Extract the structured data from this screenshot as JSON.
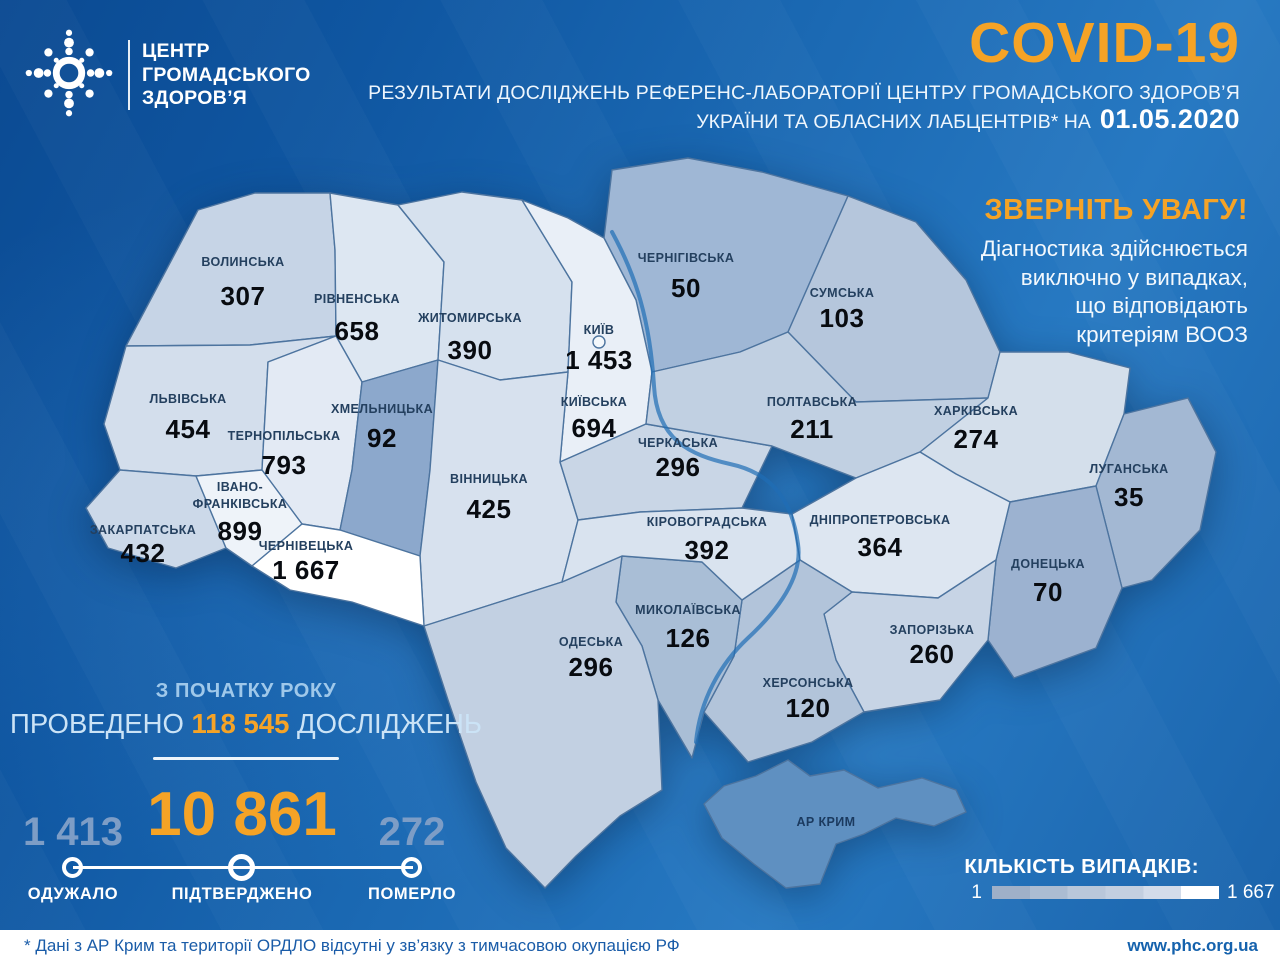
{
  "colors": {
    "accent": "#f5a326",
    "background_top": "#0b4a92",
    "background_light": "#2779c2",
    "region_border": "#4d749f",
    "footer_text": "#1a5ca8",
    "stat_muted": "#7d9dc6",
    "light_text": "#cbe3f6"
  },
  "header": {
    "logo": {
      "lines": [
        "ЦЕНТР",
        "ГРОМАДСЬКОГО",
        "ЗДОРОВ’Я"
      ]
    },
    "title": "COVID-19",
    "subtitle_line1": "РЕЗУЛЬТАТИ ДОСЛІДЖЕНЬ РЕФЕРЕНС-ЛАБОРАТОРІЇ ЦЕНТРУ ГРОМАДСЬКОГО ЗДОРОВ’Я",
    "subtitle_line2_prefix": "УКРАЇНИ ТА ОБЛАСНИХ ЛАБЦЕНТРІВ* НА",
    "date": "01.05.2020"
  },
  "notice": {
    "title": "ЗВЕРНІТЬ УВАГУ!",
    "lines": [
      "Діагностика здійснюється",
      "виключно у випадках,",
      "що відповідають",
      "критеріям ВООЗ"
    ]
  },
  "map": {
    "regions": [
      {
        "id": "volyn",
        "name": "ВОЛИНСЬКА",
        "value": "307",
        "fill": "#c6d4e6"
      },
      {
        "id": "rivne",
        "name": "РІВНЕНСЬКА",
        "value": "658",
        "fill": "#dde7f2"
      },
      {
        "id": "zhytomyr",
        "name": "ЖИТОМИРСЬКА",
        "value": "390",
        "fill": "#d6e1ee"
      },
      {
        "id": "chernihiv",
        "name": "ЧЕРНІГІВСЬКА",
        "value": "50",
        "fill": "#9fb7d5"
      },
      {
        "id": "sumy",
        "name": "СУМСЬКА",
        "value": "103",
        "fill": "#b5c6dc"
      },
      {
        "id": "lviv",
        "name": "ЛЬВІВСЬКА",
        "value": "454",
        "fill": "#d3deec"
      },
      {
        "id": "ternopil",
        "name": "ТЕРНОПІЛЬСЬКА",
        "value": "793",
        "fill": "#e3eaf4"
      },
      {
        "id": "khmelnytskyi",
        "name": "ХМЕЛЬНИЦЬКА",
        "value": "92",
        "fill": "#8ca8cc"
      },
      {
        "id": "kyiv_obl",
        "name": "КИЇВСЬКА",
        "value": "694",
        "fill": "#e9eff7"
      },
      {
        "id": "kyiv_city",
        "name": "КИЇВ",
        "value": "1 453",
        "fill": "#f3f7fb"
      },
      {
        "id": "vinnytsia",
        "name": "ВІННИЦЬКА",
        "value": "425",
        "fill": "#d7e1ee"
      },
      {
        "id": "cherkasy",
        "name": "ЧЕРКАСЬКА",
        "value": "296",
        "fill": "#c9d6e6"
      },
      {
        "id": "poltava",
        "name": "ПОЛТАВСЬКА",
        "value": "211",
        "fill": "#c1d0e2"
      },
      {
        "id": "kharkiv",
        "name": "ХАРКІВСЬКА",
        "value": "274",
        "fill": "#d4dfeb"
      },
      {
        "id": "luhansk",
        "name": "ЛУГАНСЬКА",
        "value": "35",
        "fill": "#a3b8d3"
      },
      {
        "id": "donetsk",
        "name": "ДОНЕЦЬКА",
        "value": "70",
        "fill": "#9cb2d0"
      },
      {
        "id": "dnipro",
        "name": "ДНІПРОПЕТРОВСЬКА",
        "value": "364",
        "fill": "#dde6f1"
      },
      {
        "id": "zaporizhzhia",
        "name": "ЗАПОРІЗЬКА",
        "value": "260",
        "fill": "#c7d4e5"
      },
      {
        "id": "kherson",
        "name": "ХЕРСОНСЬКА",
        "value": "120",
        "fill": "#b2c4da"
      },
      {
        "id": "mykolaiv",
        "name": "МИКОЛАЇВСЬКА",
        "value": "126",
        "fill": "#a9bed6"
      },
      {
        "id": "odesa",
        "name": "ОДЕСЬКА",
        "value": "296",
        "fill": "#c2d0e2"
      },
      {
        "id": "kirovohrad",
        "name": "КІРОВОГРАДСЬКА",
        "value": "392",
        "fill": "#d9e3ef"
      },
      {
        "id": "zakarpattia",
        "name": "ЗАКАРПАТСЬКА",
        "value": "432",
        "fill": "#ccd9e9"
      },
      {
        "id": "ivano_frankivsk",
        "name": "ІВАНО-ФРАНКІВСЬКА",
        "value": "899",
        "fill": "#eef3f9"
      },
      {
        "id": "chernivtsi",
        "name": "ЧЕРНІВЕЦЬКА",
        "value": "1 667",
        "fill": "#ffffff"
      },
      {
        "id": "krym",
        "name": "АР КРИМ",
        "value": null,
        "fill": "#5f90c1"
      }
    ]
  },
  "tests": {
    "line1": "З ПОЧАТКУ РОКУ",
    "prefix": "ПРОВЕДЕНО ",
    "count": "118 545",
    "suffix": " ДОСЛІДЖЕНЬ"
  },
  "stats": {
    "recovered": {
      "value": "1 413",
      "label": "ОДУЖАЛО"
    },
    "confirmed": {
      "value": "10 861",
      "label": "ПІДТВЕРДЖЕНО"
    },
    "died": {
      "value": "272",
      "label": "ПОМЕРЛО"
    }
  },
  "legend": {
    "title": "КІЛЬКІСТЬ ВИПАДКІВ:",
    "min": "1",
    "max": "1 667",
    "colors": [
      "#9fb0c8",
      "#abbcd2",
      "#b9c7da",
      "#c3cfe0",
      "#d3dcea",
      "#ffffff"
    ]
  },
  "footer": {
    "note": "* Дані з АР Крим та території ОРДЛО відсутні у зв’язку з тимчасовою окупацією РФ",
    "url": "www.phc.org.ua"
  }
}
